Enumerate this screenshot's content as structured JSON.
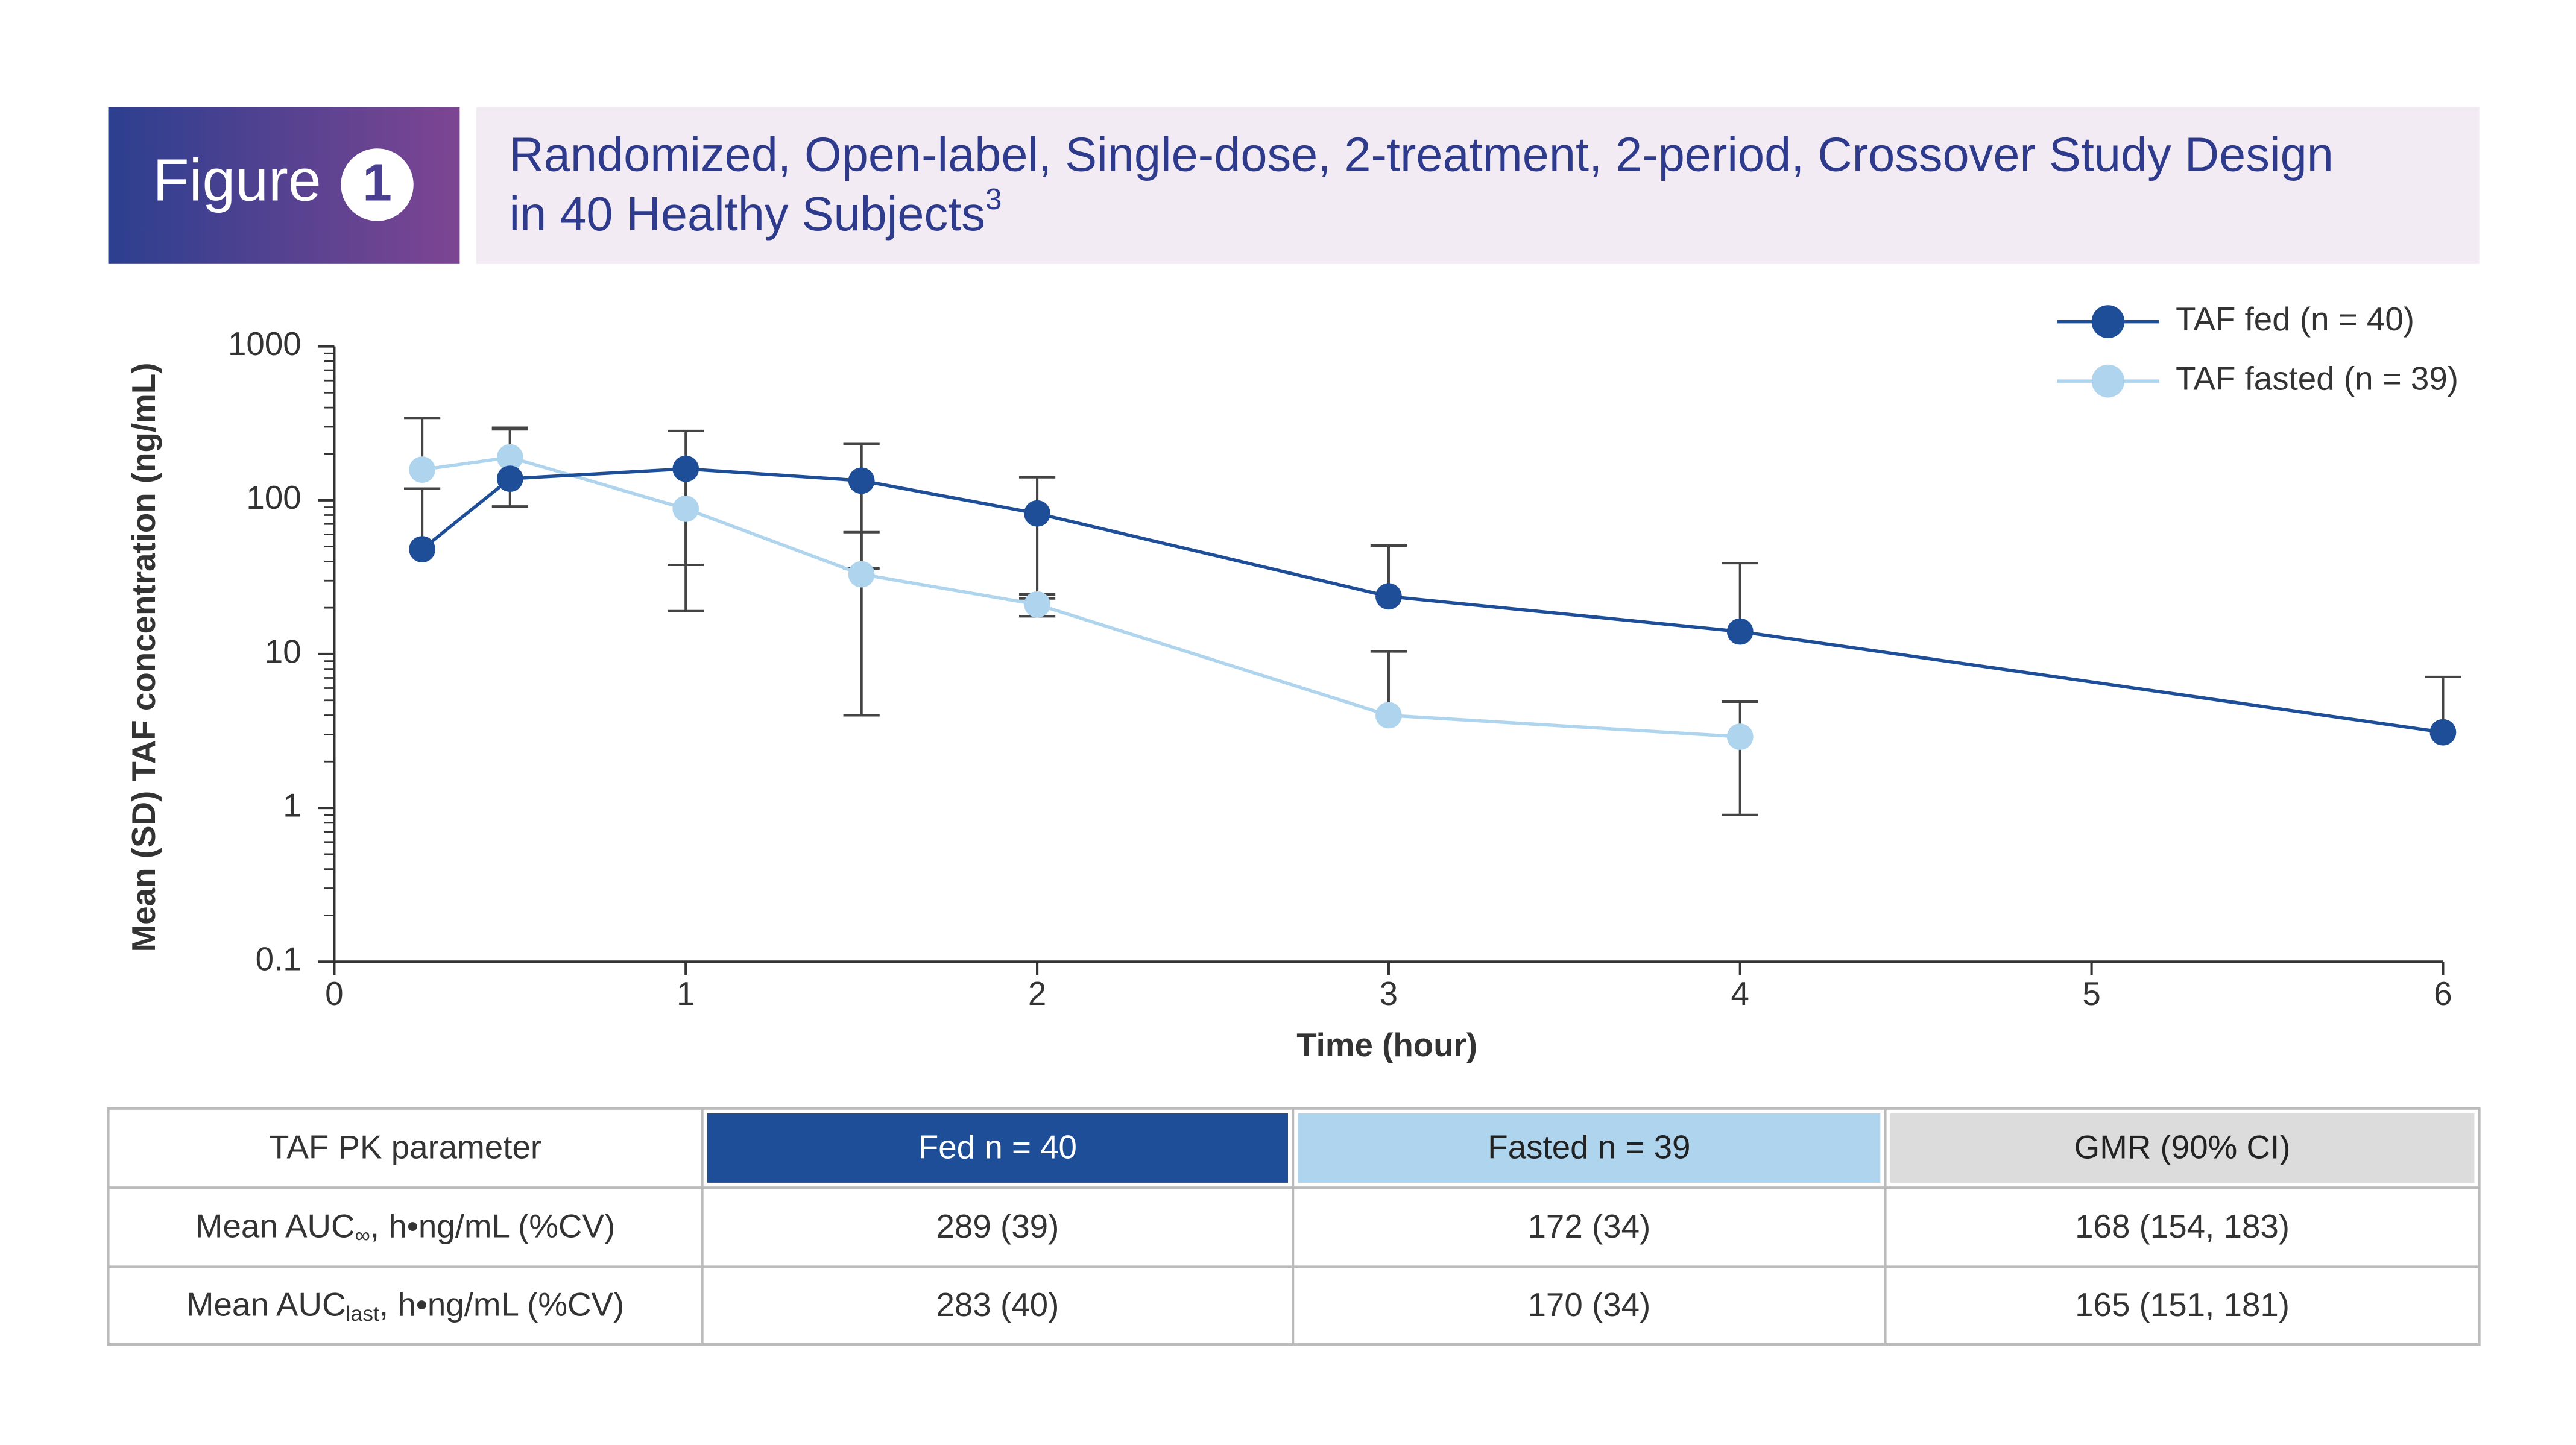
{
  "header": {
    "figure_label": "Figure",
    "figure_number": "1",
    "title_lines": [
      "Randomized, Open-label, Single-dose, 2-treatment, 2-period, Crossover Study Design",
      "in 40 Healthy Subjects"
    ],
    "title_ref": "3"
  },
  "chart_data": {
    "type": "line",
    "x_label": "Time (hour)",
    "y_label": "Mean (SD) TAF concentration (ng/mL)",
    "log_y": true,
    "xlim": [
      0,
      6
    ],
    "xticks": [
      0,
      1,
      2,
      3,
      4,
      5,
      6
    ],
    "ylim": [
      0.1,
      1000
    ],
    "yticks": [
      0.1,
      1,
      10,
      100,
      1000
    ],
    "legend": "top-right",
    "series": [
      {
        "name": "TAF fed (n = 40)",
        "color": "#1f4e99",
        "x": [
          0.25,
          0.5,
          1,
          1.5,
          2,
          3,
          4,
          6
        ],
        "values": [
          48,
          138,
          160,
          134,
          82,
          23.7,
          14,
          3.1
        ],
        "errors": [
          71,
          158,
          122,
          98,
          59,
          27,
          25,
          4
        ]
      },
      {
        "name": "TAF fasted (n = 39)",
        "color": "#aed4ee",
        "x": [
          0.25,
          0.5,
          1,
          1.5,
          2,
          3,
          4
        ],
        "values": [
          158,
          190,
          88,
          33,
          21,
          4.0,
          2.9
        ],
        "errors": [
          185,
          99,
          69,
          29,
          3.4,
          6.4,
          2
        ]
      }
    ]
  },
  "table": {
    "header": [
      "TAF PK parameter",
      "Fed n = 40",
      "Fasted n = 39",
      "GMR (90% CI)"
    ],
    "rows": [
      [
        {
          "prefix": "Mean AUC",
          "sub": "∞",
          "suffix": ", h•ng/mL (%CV)"
        },
        "289 (39)",
        "172 (34)",
        "168 (154, 183)"
      ],
      [
        {
          "prefix": "Mean AUC",
          "sub": "last",
          "suffix": ", h•ng/mL (%CV)"
        },
        "283 (40)",
        "170 (34)",
        "165 (151, 181)"
      ]
    ]
  }
}
